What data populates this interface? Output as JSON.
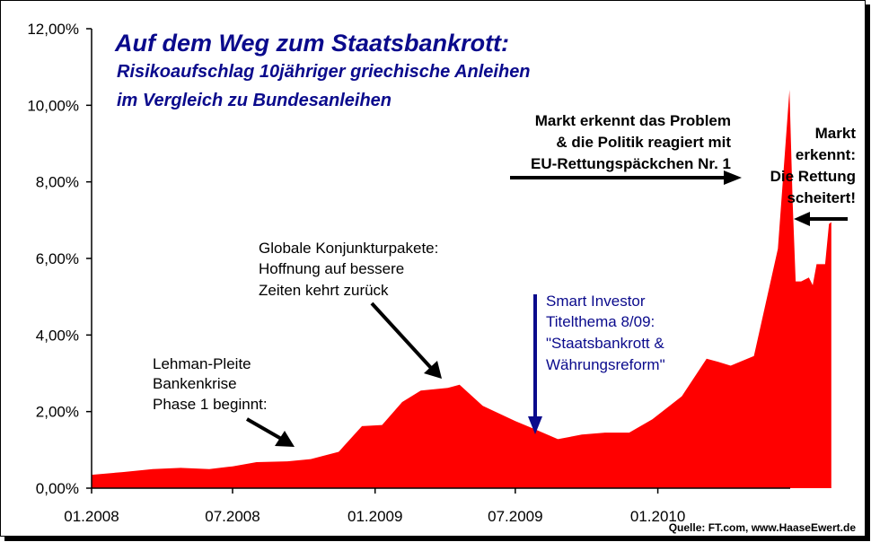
{
  "chart_data": {
    "type": "area",
    "title": "Auf dem Weg zum Staatsbankrott:",
    "subtitle_lines": [
      "Risikoaufschlag 10jähriger griechische Anleihen",
      "im Vergleich zu Bundesanleihen"
    ],
    "series_color": "#ff0000",
    "ylim": [
      0,
      12
    ],
    "y_ticks": [
      "0,00%",
      "2,00%",
      "4,00%",
      "6,00%",
      "8,00%",
      "10,00%",
      "12,00%"
    ],
    "x_ticks": [
      "01.2008",
      "07.2008",
      "01.2009",
      "07.2009",
      "01.2010"
    ],
    "x_start": "2008-01-01",
    "points": [
      [
        "2008-01-01",
        0.35
      ],
      [
        "2008-02-10",
        0.42
      ],
      [
        "2008-03-20",
        0.5
      ],
      [
        "2008-04-25",
        0.53
      ],
      [
        "2008-06-01",
        0.5
      ],
      [
        "2008-07-01",
        0.57
      ],
      [
        "2008-08-01",
        0.68
      ],
      [
        "2008-09-10",
        0.7
      ],
      [
        "2008-10-10",
        0.76
      ],
      [
        "2008-11-15",
        0.95
      ],
      [
        "2008-12-15",
        1.62
      ],
      [
        "2009-01-10",
        1.65
      ],
      [
        "2009-02-05",
        2.25
      ],
      [
        "2009-03-01",
        2.55
      ],
      [
        "2009-04-05",
        2.62
      ],
      [
        "2009-04-20",
        2.7
      ],
      [
        "2009-05-20",
        2.15
      ],
      [
        "2009-07-01",
        1.75
      ],
      [
        "2009-07-25",
        1.55
      ],
      [
        "2009-08-25",
        1.28
      ],
      [
        "2009-09-25",
        1.4
      ],
      [
        "2009-10-25",
        1.45
      ],
      [
        "2009-11-25",
        1.45
      ],
      [
        "2009-12-25",
        1.8
      ],
      [
        "2010-02-01",
        2.4
      ],
      [
        "2010-03-05",
        3.38
      ],
      [
        "2010-03-20",
        3.3
      ],
      [
        "2010-04-05",
        3.2
      ],
      [
        "2010-05-05",
        3.45
      ],
      [
        "2010-06-05",
        6.25
      ],
      [
        "2010-06-20",
        10.4
      ],
      [
        "2010-06-24",
        7.5
      ],
      [
        "2010-06-28",
        5.4
      ],
      [
        "2010-07-05",
        5.4
      ],
      [
        "2010-07-15",
        5.5
      ],
      [
        "2010-07-20",
        5.3
      ],
      [
        "2010-07-25",
        5.85
      ],
      [
        "2010-08-05",
        5.85
      ],
      [
        "2010-08-10",
        6.9
      ],
      [
        "2010-08-13",
        6.95
      ]
    ]
  },
  "annotations": {
    "lehman": [
      "Lehman-Pleite",
      "Bankenkrise",
      "Phase 1 beginnt:"
    ],
    "konjunktur": [
      "Globale Konjunkturpakete:",
      "Hoffnung auf bessere",
      "Zeiten kehrt zurück"
    ],
    "smart_investor": [
      "Smart Investor",
      "Titelthema 8/09:",
      "\"Staatsbankrott &",
      "Währungsreform\""
    ],
    "markt_problem": [
      "Markt erkennt das Problem",
      "& die Politik reagiert mit",
      "EU-Rettungspäckchen Nr. 1"
    ],
    "markt_rettung": [
      "Markt",
      "erkennt:",
      "Die Rettung",
      "scheitert!"
    ]
  },
  "source": "Quelle: FT.com, www.HaaseEwert.de",
  "colors": {
    "area": "#ff0000",
    "title": "#0a0a8c",
    "annotation_blue": "#0a0a8c",
    "arrow_black": "#000000"
  }
}
